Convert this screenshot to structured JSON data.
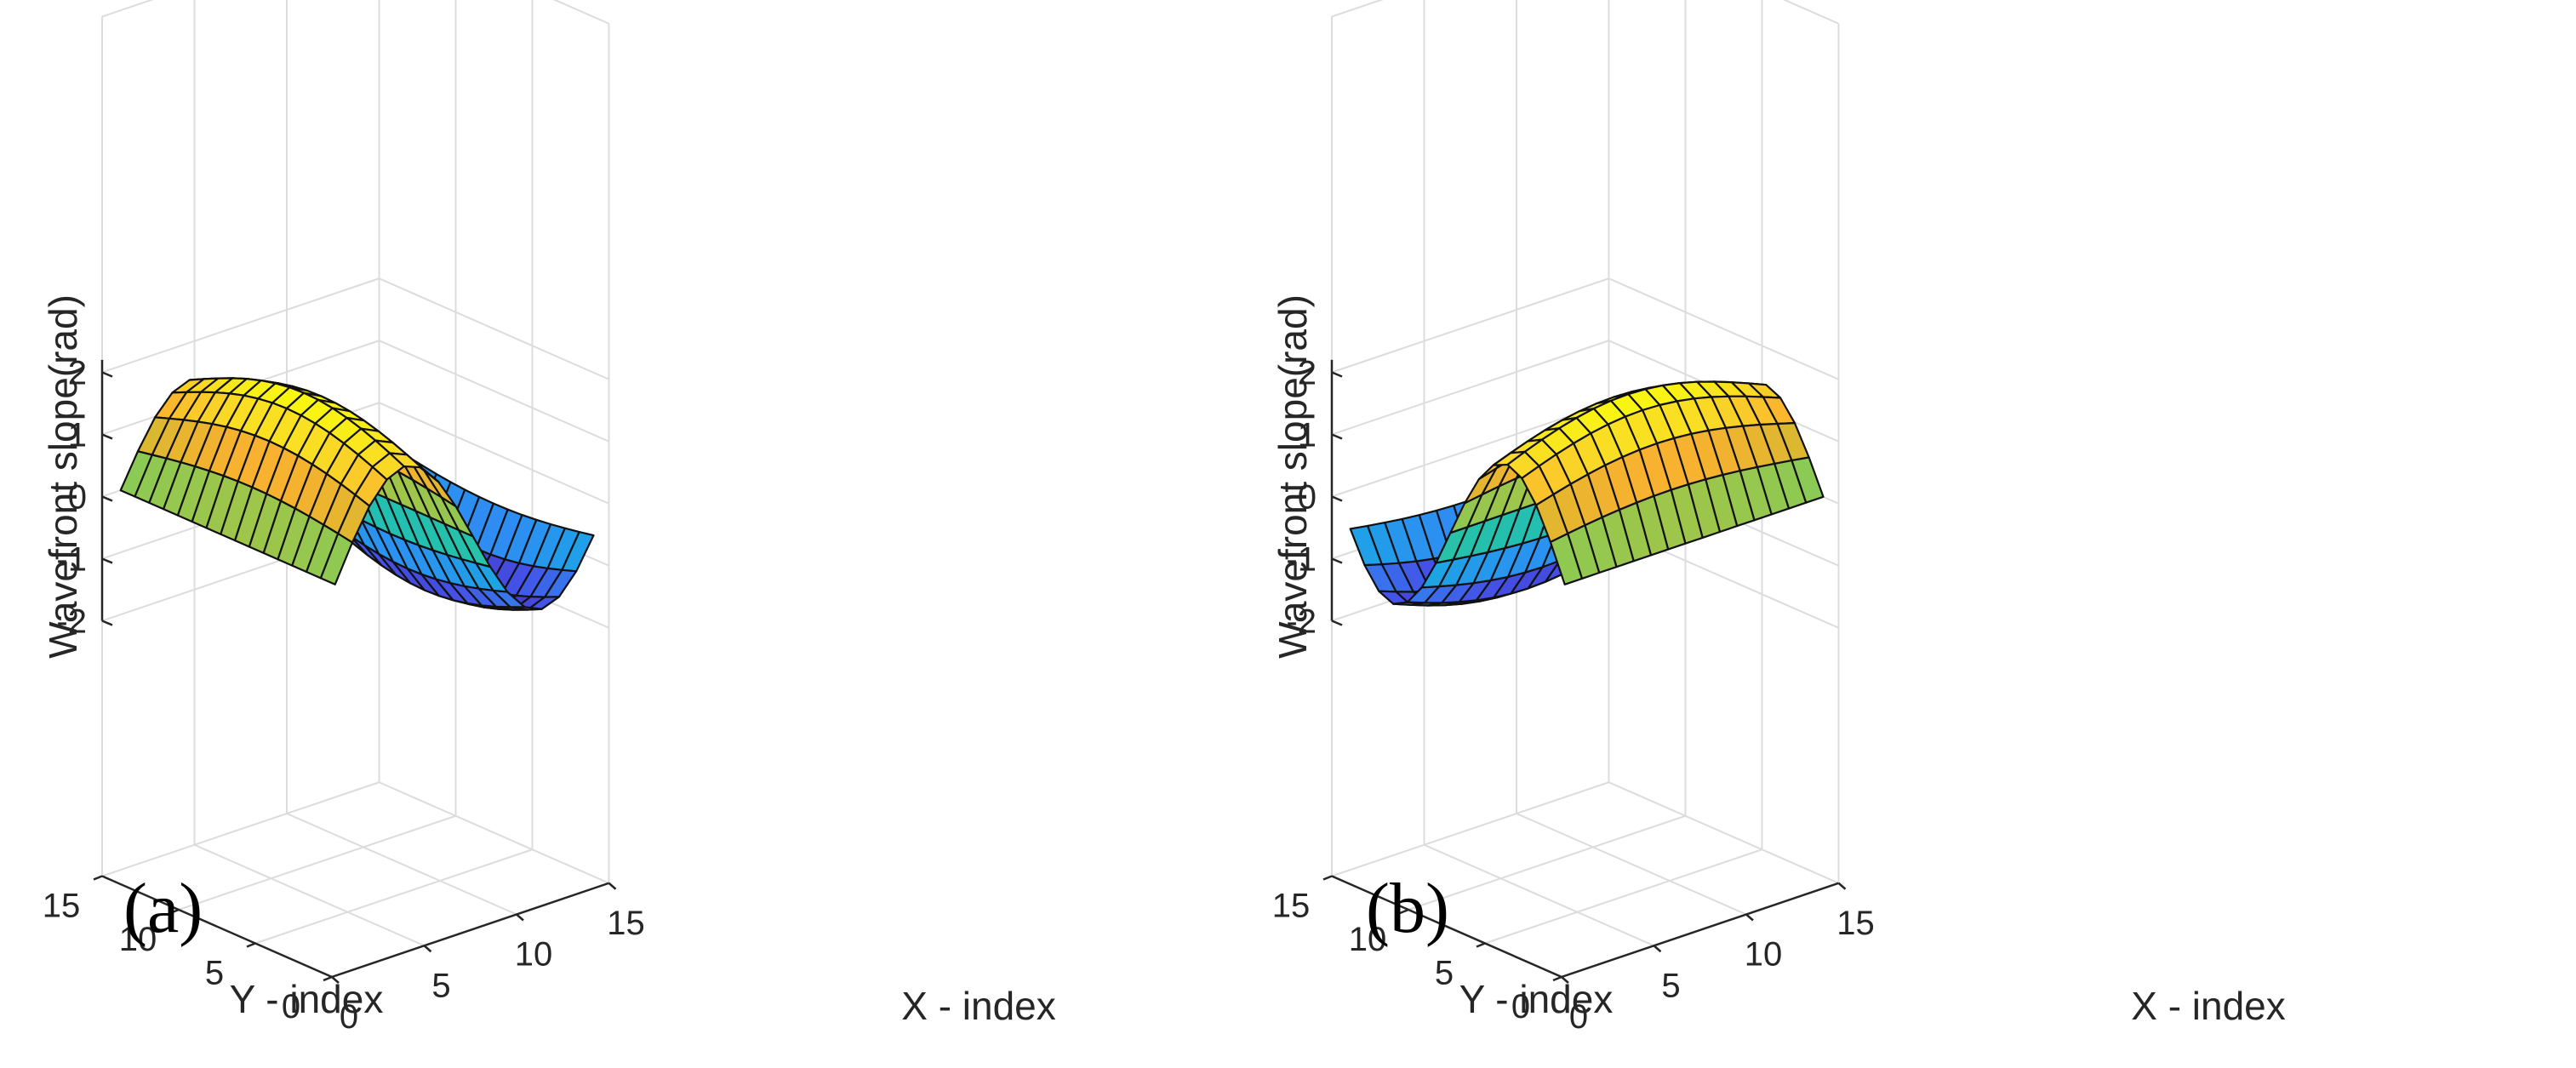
{
  "chart_data": [
    {
      "type": "surface",
      "panel_label": "(a)",
      "title": "",
      "xlabel": "X - index",
      "ylabel": "Y - index",
      "zlabel": "Wavefront slope(rad)",
      "x_range": [
        0,
        15
      ],
      "y_range": [
        0,
        15
      ],
      "z_range": [
        -2,
        2
      ],
      "x_ticks": [
        "0",
        "5",
        "10",
        "15"
      ],
      "y_ticks": [
        "0",
        "5",
        "10",
        "15"
      ],
      "z_ticks": [
        "-2",
        "-1",
        "0",
        "1",
        "2"
      ],
      "grid_size": 16,
      "surface_function": "z = 2*sin(2*pi*(x-1)/15) * (0.7 + 0.3*cos(pi*(y-7.5)/15))",
      "colormap": "parula",
      "grid": true
    },
    {
      "type": "surface",
      "panel_label": "(b)",
      "title": "",
      "xlabel": "X - index",
      "ylabel": "Y - index",
      "zlabel": "Wavefront slope(rad)",
      "x_range": [
        0,
        15
      ],
      "y_range": [
        0,
        15
      ],
      "z_range": [
        -2,
        2
      ],
      "x_ticks": [
        "0",
        "5",
        "10",
        "15"
      ],
      "y_ticks": [
        "0",
        "5",
        "10",
        "15"
      ],
      "z_ticks": [
        "-2",
        "-1",
        "0",
        "1",
        "2"
      ],
      "grid_size": 16,
      "surface_function": "z = 2*sin(2*pi*(y-1)/15) * (0.7 + 0.3*cos(pi*(x-7.5)/15))",
      "colormap": "parula",
      "grid": true
    }
  ],
  "colors": {
    "parula": [
      "#3e26a8",
      "#4550e6",
      "#2d8ef2",
      "#12b2dd",
      "#2ac49f",
      "#81cc59",
      "#d0ba30",
      "#fbb12f",
      "#f9dd25",
      "#f9fb0e"
    ]
  }
}
